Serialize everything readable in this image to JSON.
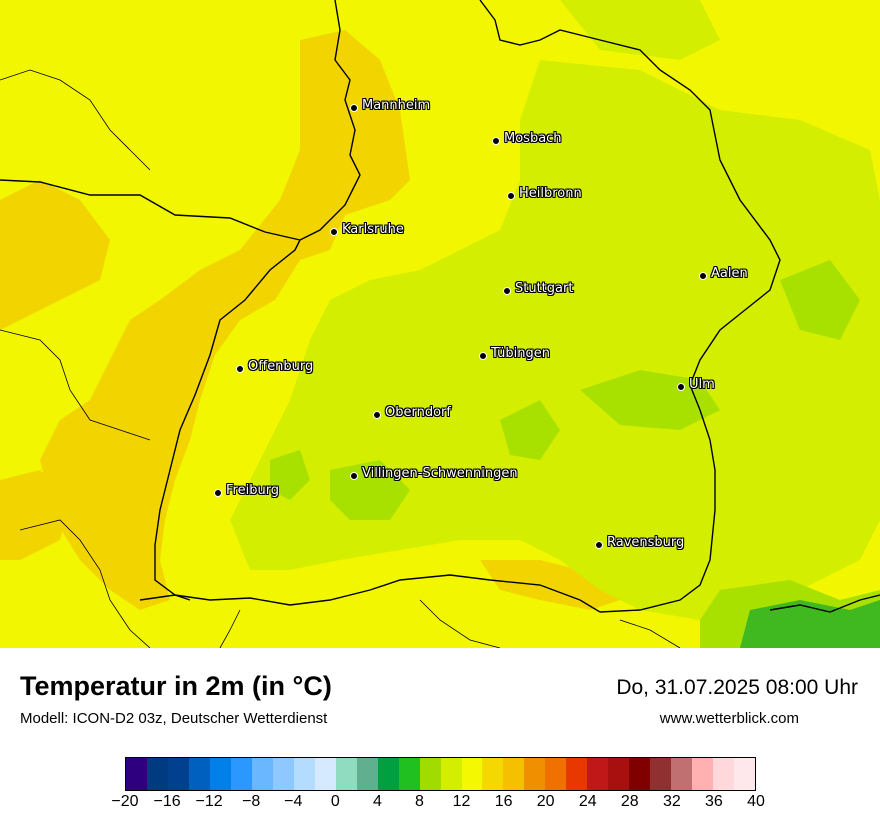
{
  "title": "Temperatur in 2m (in °C)",
  "subtitle": "Modell: ICON-D2 03z, Deutscher Wetterdienst",
  "datetime": "Do, 31.07.2025 08:00 Uhr",
  "website": "www.wetterblick.com",
  "cities": [
    {
      "name": "Mannheim"
    },
    {
      "name": "Mosbach"
    },
    {
      "name": "Heilbronn"
    },
    {
      "name": "Karlsruhe"
    },
    {
      "name": "Aalen"
    },
    {
      "name": "Stuttgart"
    },
    {
      "name": "Tübingen"
    },
    {
      "name": "Offenburg"
    },
    {
      "name": "Ulm"
    },
    {
      "name": "Oberndorf"
    },
    {
      "name": "Villingen-Schwenningen"
    },
    {
      "name": "Freiburg"
    },
    {
      "name": "Ravensburg"
    }
  ],
  "colorbar": {
    "min": -20,
    "max": 40,
    "step": 2,
    "ticks": [
      "−20",
      "−16",
      "−12",
      "−8",
      "−4",
      "0",
      "4",
      "8",
      "12",
      "16",
      "20",
      "24",
      "28",
      "32",
      "36",
      "40"
    ],
    "colors": [
      "#2e0080",
      "#003a80",
      "#00408f",
      "#0060c0",
      "#0080e8",
      "#2a98ff",
      "#6ab6ff",
      "#8ec8ff",
      "#b4dcff",
      "#d6eaff",
      "#90dcc0",
      "#60b090",
      "#00a040",
      "#20c020",
      "#a0dc00",
      "#d4ee00",
      "#f4f800",
      "#f4d800",
      "#f4c000",
      "#f09000",
      "#f07000",
      "#e83800",
      "#c01818",
      "#a81010",
      "#800000",
      "#903030",
      "#c07070",
      "#ffb0b0",
      "#ffd8dc",
      "#ffe8ec"
    ]
  },
  "map_colors": {
    "t16_18": "#f2f700",
    "t18_20": "#f2d400",
    "t14_16": "#d4ee00",
    "t12_14": "#a8e000",
    "t10_12": "#40b820",
    "border": "#000000"
  }
}
